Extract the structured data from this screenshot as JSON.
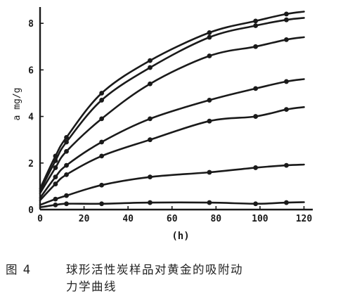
{
  "chart_data": {
    "type": "line",
    "title": "",
    "xlabel": "(h)",
    "ylabel": "a mg/g",
    "xlim": [
      0,
      124
    ],
    "ylim": [
      0,
      8.7
    ],
    "xticks": [
      "0",
      "20",
      "40",
      "60",
      "80",
      "100",
      "120"
    ],
    "yticks": [
      "0",
      "2",
      "4",
      "6",
      "8"
    ],
    "grid": false,
    "legend": "none",
    "colors": {
      "ink": "#1a1a1a"
    },
    "series": [
      {
        "x": [
          0,
          7,
          12,
          28,
          50,
          77,
          98,
          112
        ],
        "y": [
          0.9,
          2.3,
          3.1,
          5.0,
          6.4,
          7.6,
          8.1,
          8.4
        ]
      },
      {
        "x": [
          0,
          7,
          12,
          28,
          50,
          77,
          98,
          112
        ],
        "y": [
          0.8,
          2.1,
          2.9,
          4.7,
          6.1,
          7.4,
          7.9,
          8.15
        ]
      },
      {
        "x": [
          0,
          7,
          12,
          28,
          50,
          77,
          98,
          112
        ],
        "y": [
          0.7,
          1.8,
          2.5,
          3.9,
          5.4,
          6.6,
          7.0,
          7.3
        ]
      },
      {
        "x": [
          0,
          7,
          12,
          28,
          50,
          77,
          98,
          112
        ],
        "y": [
          0.5,
          1.4,
          1.9,
          2.9,
          3.9,
          4.7,
          5.2,
          5.5
        ]
      },
      {
        "x": [
          0,
          7,
          12,
          28,
          50,
          77,
          98,
          112
        ],
        "y": [
          0.4,
          1.1,
          1.5,
          2.3,
          3.0,
          3.8,
          4.0,
          4.3
        ]
      },
      {
        "x": [
          0,
          7,
          12,
          28,
          50,
          77,
          98,
          112
        ],
        "y": [
          0.2,
          0.45,
          0.6,
          1.05,
          1.4,
          1.6,
          1.8,
          1.9
        ]
      },
      {
        "x": [
          0,
          7,
          12,
          28,
          50,
          77,
          98,
          112
        ],
        "y": [
          0.1,
          0.2,
          0.25,
          0.25,
          0.3,
          0.3,
          0.25,
          0.3
        ]
      }
    ]
  },
  "caption": {
    "figure_label": "图 4",
    "text_line1": "球形活性炭样品对黄金的吸附动",
    "text_line2": "力学曲线"
  }
}
